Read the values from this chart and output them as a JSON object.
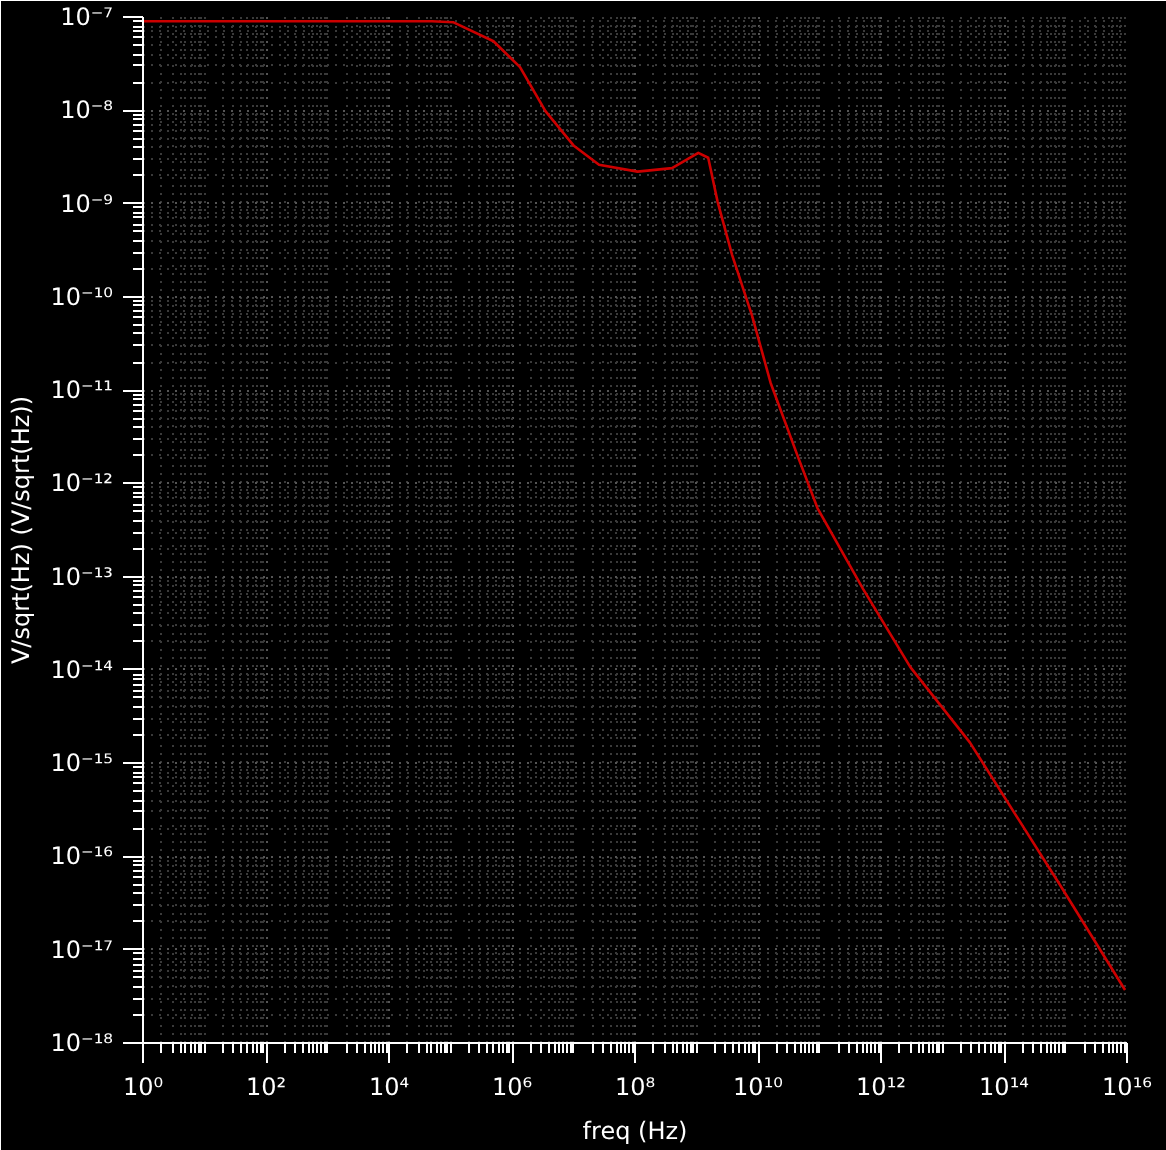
{
  "chart_data": {
    "type": "line",
    "xlabel": "freq (Hz)",
    "ylabel": "V/sqrt(Hz) (V/sqrt(Hz))",
    "log": "xy",
    "grid": true,
    "line_style": "solid",
    "marker": "none",
    "xlim": [
      1,
      1e+16
    ],
    "ylim": [
      1e-18,
      1e-07
    ],
    "xticks": [
      {
        "value": 1,
        "label": "10⁰"
      },
      {
        "value": 100.0,
        "label": "10²"
      },
      {
        "value": 10000.0,
        "label": "10⁴"
      },
      {
        "value": 1000000.0,
        "label": "10⁶"
      },
      {
        "value": 100000000.0,
        "label": "10⁸"
      },
      {
        "value": 10000000000.0,
        "label": "10¹⁰"
      },
      {
        "value": 1000000000000.0,
        "label": "10¹²"
      },
      {
        "value": 100000000000000.0,
        "label": "10¹⁴"
      },
      {
        "value": 1e+16,
        "label": "10¹⁶"
      }
    ],
    "yticks": [
      {
        "value": 1e-18,
        "label": "10⁻¹⁸"
      },
      {
        "value": 1e-17,
        "label": "10⁻¹⁷"
      },
      {
        "value": 1e-16,
        "label": "10⁻¹⁶"
      },
      {
        "value": 1e-15,
        "label": "10⁻¹⁵"
      },
      {
        "value": 1e-14,
        "label": "10⁻¹⁴"
      },
      {
        "value": 1e-13,
        "label": "10⁻¹³"
      },
      {
        "value": 1e-12,
        "label": "10⁻¹²"
      },
      {
        "value": 1e-11,
        "label": "10⁻¹¹"
      },
      {
        "value": 1e-10,
        "label": "10⁻¹⁰"
      },
      {
        "value": 1e-09,
        "label": "10⁻⁹"
      },
      {
        "value": 1e-08,
        "label": "10⁻⁸"
      },
      {
        "value": 1e-07,
        "label": "10⁻⁷"
      }
    ],
    "series": [
      {
        "color": "#cc0000",
        "x": [
          1,
          1000.0,
          50000.0,
          110000.0,
          500000.0,
          1350000.0,
          3500000.0,
          10000000.0,
          26000000.0,
          110000000.0,
          400000000.0,
          1070000000.0,
          1550000000.0,
          2200000000.0,
          3800000000.0,
          8000000000.0,
          16000000000.0,
          45000000000.0,
          93000000000.0,
          510000000000.0,
          3000000000000.0,
          28000000000000.0,
          890000000000000.0,
          9300000000000000.0
        ],
        "values": [
          9e-08,
          9e-08,
          9e-08,
          8.8e-08,
          5.5e-08,
          2.9e-08,
          9.8e-09,
          4.2e-09,
          2.6e-09,
          2.2e-09,
          2.4e-09,
          3.5e-09,
          3.1e-09,
          1.05e-09,
          2.8e-10,
          6.3e-11,
          1.2e-11,
          1.9e-12,
          5.4e-13,
          7.4e-14,
          1.07e-14,
          1.66e-15,
          4.5e-17,
          3.7e-18
        ]
      }
    ]
  }
}
